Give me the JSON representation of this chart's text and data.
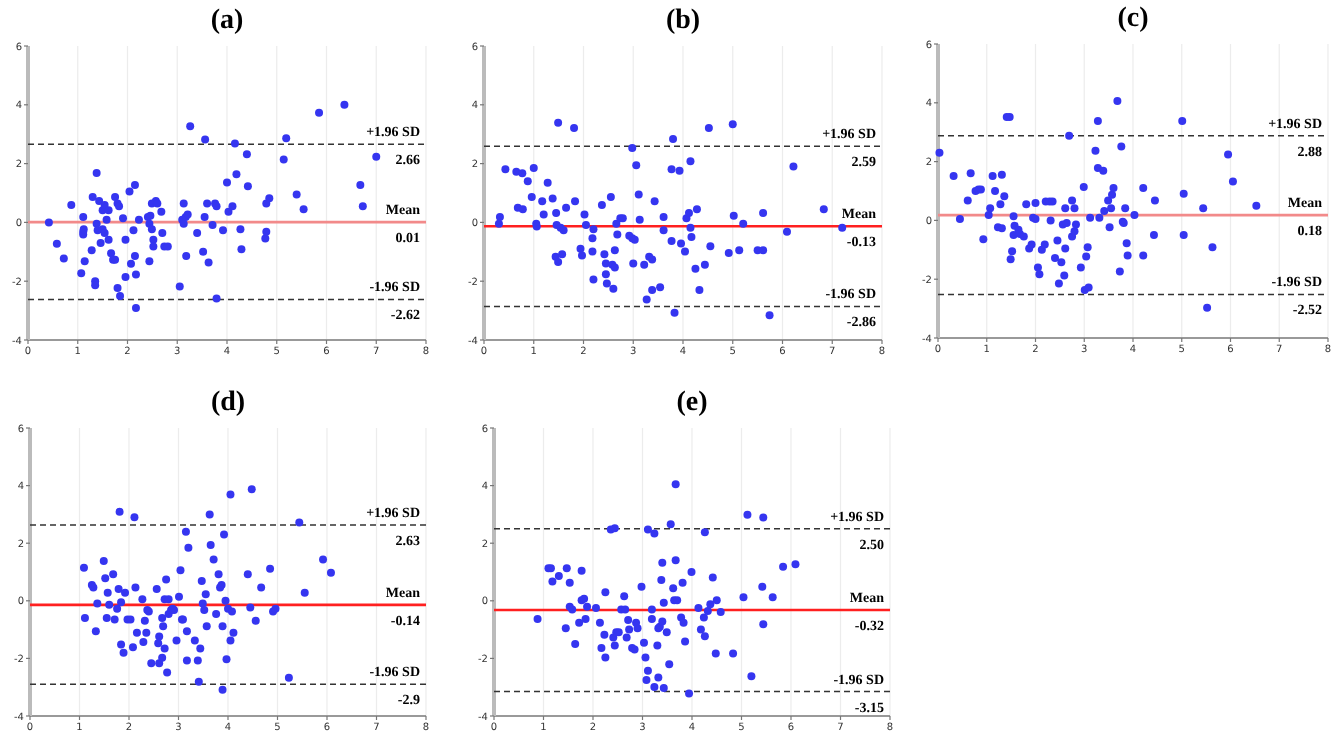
{
  "chart_data": [
    {
      "type": "scatter",
      "title": "(a)",
      "xlim": [
        0,
        8
      ],
      "xticks": [
        0,
        1,
        2,
        3,
        4,
        5,
        6,
        7,
        8
      ],
      "ylim": [
        -4,
        6
      ],
      "yticks": [
        -4,
        -2,
        0,
        2,
        4,
        6
      ],
      "grid": "x",
      "marker": "circle",
      "series": [
        {
          "color": "#3535f0",
          "x": [
            0.42,
            0.58,
            0.72,
            0.87,
            1.07,
            1.11,
            1.11,
            1.11,
            1.12,
            1.14,
            1.3,
            1.28,
            1.35,
            1.35,
            1.38,
            1.38,
            1.4,
            1.43,
            1.46,
            1.5,
            1.5,
            1.54,
            1.54,
            1.58,
            1.62,
            1.62,
            1.67,
            1.71,
            1.75,
            1.75,
            1.8,
            1.8,
            1.83,
            1.85,
            1.91,
            1.96,
            1.96,
            2.04,
            2.07,
            2.12,
            2.15,
            2.15,
            2.17,
            2.17,
            2.23,
            2.41,
            2.44,
            2.44,
            2.46,
            2.49,
            2.49,
            2.52,
            2.52,
            2.57,
            2.6,
            2.68,
            2.7,
            2.74,
            2.81,
            3.05,
            3.1,
            3.13,
            3.13,
            3.17,
            3.18,
            3.21,
            3.26,
            3.4,
            3.52,
            3.55,
            3.56,
            3.6,
            3.63,
            3.71,
            3.76,
            3.79,
            3.79,
            3.92,
            4.0,
            4.03,
            4.11,
            4.16,
            4.19,
            4.27,
            4.29,
            4.4,
            4.42,
            4.77,
            4.79,
            4.79,
            4.85,
            5.14,
            5.19,
            5.4,
            5.54,
            5.85,
            6.36,
            6.68,
            6.73,
            7.0
          ],
          "values": [
            0.0,
            -0.73,
            -1.23,
            0.59,
            -1.73,
            0.18,
            -0.32,
            -0.41,
            -0.23,
            -1.32,
            0.86,
            -0.95,
            -2.0,
            -2.14,
            1.68,
            -0.05,
            -0.27,
            0.73,
            -0.7,
            0.41,
            -0.23,
            0.59,
            -0.36,
            0.09,
            0.41,
            -0.59,
            -1.05,
            -1.27,
            0.86,
            -1.27,
            0.64,
            -2.23,
            0.55,
            -2.5,
            0.14,
            -0.59,
            -1.86,
            1.05,
            -1.41,
            -0.27,
            -1.14,
            1.27,
            -1.77,
            -2.91,
            0.09,
            0.18,
            -0.05,
            -1.32,
            0.23,
            0.64,
            -0.23,
            -0.59,
            -0.82,
            0.73,
            0.64,
            0.36,
            -0.36,
            -0.82,
            -0.82,
            -2.18,
            0.09,
            0.64,
            -0.05,
            0.18,
            -1.14,
            0.27,
            3.27,
            -0.36,
            -1.0,
            0.18,
            2.82,
            0.64,
            -1.36,
            -0.09,
            0.64,
            0.55,
            -2.59,
            -0.27,
            1.36,
            0.36,
            0.55,
            2.68,
            1.64,
            -0.23,
            -0.91,
            2.32,
            1.23,
            -0.55,
            -0.32,
            0.64,
            0.82,
            2.14,
            2.86,
            0.95,
            0.45,
            3.73,
            4.0,
            1.27,
            0.55,
            2.23
          ]
        }
      ],
      "ref_lines": [
        {
          "axis": "y",
          "value": 2.66,
          "label": "+1.96 SD",
          "color": "#333333",
          "line_style": "dashed"
        },
        {
          "axis": "y",
          "value": 0.01,
          "label": "Mean",
          "color": "#f28a8a",
          "line_style": "solid"
        },
        {
          "axis": "y",
          "value": -2.62,
          "label": "-1.96 SD",
          "color": "#333333",
          "line_style": "dashed"
        }
      ],
      "annotations": [
        {
          "text": "2.66",
          "y": 2.66
        },
        {
          "text": "0.01",
          "y": 0.01
        },
        {
          "text": "-2.62",
          "y": -2.62
        }
      ]
    },
    {
      "type": "scatter",
      "title": "(b)",
      "xlim": [
        0,
        8
      ],
      "xticks": [
        0,
        1,
        2,
        3,
        4,
        5,
        6,
        7,
        8
      ],
      "ylim": [
        -4,
        6
      ],
      "yticks": [
        -4,
        -2,
        0,
        2,
        4,
        6
      ],
      "grid": "x",
      "marker": "circle",
      "series": [
        {
          "color": "#3535f0",
          "x": [
            0.32,
            0.3,
            0.43,
            0.65,
            0.68,
            0.77,
            0.78,
            0.88,
            0.96,
            1.0,
            1.05,
            1.06,
            1.17,
            1.2,
            1.28,
            1.38,
            1.44,
            1.45,
            1.46,
            1.49,
            1.49,
            1.54,
            1.57,
            1.6,
            1.65,
            1.81,
            1.83,
            1.94,
            1.97,
            2.02,
            2.05,
            2.18,
            2.2,
            2.18,
            2.2,
            2.37,
            2.42,
            2.45,
            2.45,
            2.47,
            2.55,
            2.58,
            2.6,
            2.63,
            2.63,
            2.66,
            2.68,
            2.74,
            2.79,
            2.92,
            2.98,
            2.98,
            3.0,
            3.03,
            3.06,
            3.11,
            3.13,
            3.22,
            3.27,
            3.32,
            3.38,
            3.38,
            3.43,
            3.54,
            3.61,
            3.61,
            3.77,
            3.77,
            3.8,
            3.83,
            3.93,
            3.96,
            4.04,
            4.07,
            4.12,
            4.15,
            4.15,
            4.17,
            4.25,
            4.28,
            4.33,
            4.44,
            4.52,
            4.55,
            4.92,
            5.0,
            5.02,
            5.13,
            5.21,
            5.5,
            5.61,
            5.61,
            5.74,
            6.09,
            6.22,
            6.83,
            7.2
          ],
          "values": [
            0.18,
            -0.05,
            1.81,
            1.72,
            0.5,
            1.67,
            0.45,
            1.4,
            0.86,
            1.85,
            -0.05,
            -0.14,
            0.72,
            0.27,
            1.35,
            0.81,
            -1.17,
            0.32,
            -0.09,
            3.39,
            -1.35,
            -0.18,
            -1.08,
            -0.27,
            0.5,
            3.21,
            0.72,
            -0.9,
            -1.13,
            0.27,
            -0.09,
            -0.54,
            -0.23,
            -0.99,
            -1.94,
            0.59,
            -1.08,
            -1.4,
            -1.76,
            -2.08,
            0.86,
            -1.44,
            -2.26,
            -0.95,
            -1.53,
            -0.05,
            -0.41,
            0.14,
            0.14,
            -0.45,
            2.53,
            -0.54,
            -1.4,
            -0.59,
            1.94,
            0.95,
            0.09,
            -1.44,
            -2.62,
            -1.17,
            -2.3,
            -1.26,
            0.72,
            -2.21,
            0.18,
            -0.27,
            1.81,
            -0.63,
            2.84,
            -3.07,
            1.76,
            -0.72,
            -0.99,
            0.14,
            0.32,
            2.08,
            -0.18,
            -0.5,
            -1.58,
            0.45,
            -2.3,
            -1.44,
            3.21,
            -0.81,
            -1.04,
            3.34,
            0.23,
            -0.95,
            -0.05,
            -0.95,
            -0.95,
            0.32,
            -3.16,
            -0.32,
            1.9,
            0.45,
            -0.18
          ]
        }
      ],
      "ref_lines": [
        {
          "axis": "y",
          "value": 2.59,
          "label": "+1.96 SD",
          "color": "#333333",
          "line_style": "dashed"
        },
        {
          "axis": "y",
          "value": -0.13,
          "label": "Mean",
          "color": "#ff2020",
          "line_style": "solid"
        },
        {
          "axis": "y",
          "value": -2.86,
          "label": "-1.96 SD",
          "color": "#333333",
          "line_style": "dashed"
        }
      ],
      "annotations": [
        {
          "text": "2.59",
          "y": 2.59
        },
        {
          "text": "-0.13",
          "y": -0.13
        },
        {
          "text": "-2.86",
          "y": -2.86
        }
      ]
    },
    {
      "type": "scatter",
      "title": "(c)",
      "xlim": [
        0,
        8
      ],
      "xticks": [
        0,
        1,
        2,
        3,
        4,
        5,
        6,
        7,
        8
      ],
      "ylim": [
        -4,
        6
      ],
      "yticks": [
        -4,
        -2,
        0,
        2,
        4,
        6
      ],
      "grid": "x",
      "marker": "circle",
      "series": [
        {
          "color": "#3535f0",
          "x": [
            0.03,
            0.32,
            0.45,
            0.61,
            0.67,
            0.77,
            0.83,
            0.88,
            0.93,
            1.04,
            1.07,
            1.12,
            1.17,
            1.23,
            1.28,
            1.31,
            1.31,
            1.36,
            1.41,
            1.47,
            1.49,
            1.52,
            1.55,
            1.55,
            1.57,
            1.65,
            1.68,
            1.76,
            1.81,
            1.87,
            1.92,
            1.95,
            2.0,
            2.0,
            2.05,
            2.08,
            2.13,
            2.19,
            2.21,
            2.29,
            2.31,
            2.35,
            2.4,
            2.45,
            2.48,
            2.53,
            2.56,
            2.59,
            2.61,
            2.61,
            2.64,
            2.69,
            2.75,
            2.75,
            2.8,
            2.8,
            2.83,
            2.93,
            2.99,
            3.01,
            3.04,
            3.07,
            3.09,
            3.12,
            3.23,
            3.28,
            3.28,
            3.31,
            3.39,
            3.41,
            3.49,
            3.52,
            3.55,
            3.57,
            3.6,
            3.68,
            3.73,
            3.76,
            3.79,
            3.81,
            3.84,
            3.87,
            3.89,
            4.03,
            4.21,
            4.21,
            4.43,
            4.45,
            5.01,
            5.04,
            5.04,
            5.44,
            5.52,
            5.63,
            5.95,
            6.05,
            6.53
          ],
          "values": [
            2.3,
            1.51,
            0.05,
            0.68,
            1.6,
            1.0,
            1.05,
            1.05,
            -0.64,
            0.18,
            0.41,
            1.51,
            1.0,
            -0.23,
            0.55,
            -0.27,
            1.55,
            0.82,
            3.52,
            3.52,
            -1.32,
            -1.05,
            0.14,
            -0.5,
            -0.18,
            -0.32,
            -0.46,
            -0.55,
            0.55,
            -0.96,
            -0.82,
            0.09,
            0.59,
            0.05,
            -1.6,
            -1.83,
            -1.0,
            -0.82,
            0.64,
            0.64,
            0.0,
            0.64,
            -1.28,
            -0.68,
            -2.15,
            -1.42,
            -0.14,
            -1.87,
            -0.96,
            0.41,
            -0.09,
            2.88,
            0.68,
            -0.55,
            -0.37,
            0.41,
            -0.14,
            -1.6,
            1.14,
            -2.37,
            -1.23,
            -0.91,
            -2.28,
            0.09,
            2.37,
            1.78,
            3.38,
            0.09,
            1.69,
            0.32,
            0.68,
            -0.23,
            0.41,
            0.87,
            1.1,
            4.06,
            -1.74,
            2.51,
            -0.05,
            -0.09,
            0.41,
            -0.78,
            -1.19,
            0.18,
            1.1,
            -1.19,
            -0.5,
            0.68,
            3.38,
            0.91,
            -0.5,
            0.41,
            -2.97,
            -0.91,
            2.24,
            1.32,
            0.5
          ]
        }
      ],
      "ref_lines": [
        {
          "axis": "y",
          "value": 2.88,
          "label": "+1.96 SD",
          "color": "#333333",
          "line_style": "dashed"
        },
        {
          "axis": "y",
          "value": 0.18,
          "label": "Mean",
          "color": "#f28a8a",
          "line_style": "solid"
        },
        {
          "axis": "y",
          "value": -2.52,
          "label": "-1.96 SD",
          "color": "#333333",
          "line_style": "dashed"
        }
      ],
      "annotations": [
        {
          "text": "2.88",
          "y": 2.88
        },
        {
          "text": "0.18",
          "y": 0.18
        },
        {
          "text": "-2.52",
          "y": -2.52
        }
      ]
    },
    {
      "type": "scatter",
      "title": "(d)",
      "xlim": [
        0,
        8
      ],
      "xticks": [
        0,
        1,
        2,
        3,
        4,
        5,
        6,
        7,
        8
      ],
      "ylim": [
        -4,
        6
      ],
      "yticks": [
        -4,
        -2,
        0,
        2,
        4,
        6
      ],
      "grid": "x",
      "marker": "circle",
      "series": [
        {
          "color": "#3535f0",
          "x": [
            1.09,
            1.11,
            1.25,
            1.28,
            1.33,
            1.36,
            1.49,
            1.52,
            1.55,
            1.57,
            1.6,
            1.68,
            1.71,
            1.76,
            1.79,
            1.81,
            1.84,
            1.84,
            1.89,
            1.92,
            1.97,
            2.03,
            2.08,
            2.11,
            2.13,
            2.16,
            2.27,
            2.29,
            2.32,
            2.35,
            2.37,
            2.4,
            2.45,
            2.56,
            2.59,
            2.61,
            2.61,
            2.67,
            2.67,
            2.69,
            2.72,
            2.72,
            2.75,
            2.77,
            2.8,
            2.8,
            2.85,
            2.88,
            2.91,
            2.96,
            3.01,
            3.04,
            3.07,
            3.09,
            3.15,
            3.17,
            3.17,
            3.2,
            3.33,
            3.39,
            3.41,
            3.44,
            3.47,
            3.49,
            3.52,
            3.55,
            3.57,
            3.63,
            3.65,
            3.71,
            3.76,
            3.81,
            3.84,
            3.87,
            3.89,
            3.89,
            3.92,
            3.95,
            3.97,
            4.0,
            4.05,
            4.05,
            4.08,
            4.11,
            4.4,
            4.45,
            4.48,
            4.56,
            4.67,
            4.85,
            4.91,
            4.96,
            5.23,
            5.44,
            5.55,
            5.92,
            6.08
          ],
          "values": [
            1.15,
            -0.6,
            0.55,
            0.46,
            -1.06,
            -0.09,
            1.38,
            0.78,
            -0.6,
            0.28,
            -0.14,
            0.92,
            -0.65,
            -0.28,
            0.41,
            3.09,
            -0.05,
            -1.52,
            -1.8,
            0.28,
            -0.65,
            -0.65,
            -1.61,
            2.9,
            0.46,
            -1.11,
            0.05,
            -1.43,
            -0.69,
            -1.11,
            -0.32,
            -0.37,
            -2.17,
            0.41,
            -1.47,
            -2.17,
            -1.24,
            -1.98,
            -0.6,
            -0.88,
            0.05,
            -1.66,
            0.74,
            -2.49,
            0.05,
            -0.46,
            -0.32,
            -0.28,
            -0.32,
            -1.38,
            0.14,
            1.06,
            -0.65,
            -0.65,
            2.4,
            -1.06,
            -2.07,
            1.84,
            -1.38,
            -2.07,
            -2.81,
            -1.66,
            0.69,
            -0.09,
            -0.32,
            0.23,
            -0.88,
            3.0,
            1.94,
            1.43,
            -0.46,
            0.92,
            0.46,
            0.55,
            -0.88,
            -3.09,
            2.3,
            0.0,
            -2.03,
            -0.28,
            3.69,
            -1.38,
            -0.37,
            -1.11,
            0.92,
            -0.23,
            3.87,
            -0.69,
            0.46,
            1.11,
            -0.37,
            -0.28,
            -2.67,
            2.72,
            0.28,
            1.43,
            0.97
          ]
        }
      ],
      "ref_lines": [
        {
          "axis": "y",
          "value": 2.63,
          "label": "+1.96 SD",
          "color": "#333333",
          "line_style": "dashed"
        },
        {
          "axis": "y",
          "value": -0.14,
          "label": "Mean",
          "color": "#ff2020",
          "line_style": "solid"
        },
        {
          "axis": "y",
          "value": -2.9,
          "label": "-1.96 SD",
          "color": "#333333",
          "line_style": "dashed"
        }
      ],
      "annotations": [
        {
          "text": "2.63",
          "y": 2.63
        },
        {
          "text": "-0.14",
          "y": -0.14
        },
        {
          "text": "-2.9",
          "y": -2.9
        }
      ]
    },
    {
      "type": "scatter",
      "title": "(e)",
      "xlim": [
        0,
        8
      ],
      "xticks": [
        0,
        1,
        2,
        3,
        4,
        5,
        6,
        7,
        8
      ],
      "ylim": [
        -4,
        6
      ],
      "yticks": [
        -4,
        -2,
        0,
        2,
        4,
        6
      ],
      "grid": "x",
      "marker": "circle",
      "series": [
        {
          "color": "#3535f0",
          "x": [
            0.88,
            1.1,
            1.15,
            1.18,
            1.31,
            1.45,
            1.47,
            1.53,
            1.53,
            1.58,
            1.64,
            1.72,
            1.77,
            1.77,
            1.82,
            1.85,
            1.88,
            2.06,
            2.14,
            2.17,
            2.23,
            2.25,
            2.25,
            2.36,
            2.41,
            2.44,
            2.44,
            2.47,
            2.52,
            2.57,
            2.63,
            2.65,
            2.68,
            2.71,
            2.73,
            2.79,
            2.84,
            2.87,
            2.9,
            2.98,
            3.03,
            3.06,
            3.08,
            3.11,
            3.11,
            3.19,
            3.19,
            3.24,
            3.24,
            3.3,
            3.32,
            3.32,
            3.35,
            3.38,
            3.4,
            3.4,
            3.43,
            3.43,
            3.49,
            3.54,
            3.57,
            3.62,
            3.64,
            3.67,
            3.67,
            3.7,
            3.78,
            3.81,
            3.83,
            3.86,
            3.94,
            3.99,
            4.13,
            4.18,
            4.24,
            4.26,
            4.26,
            4.32,
            4.37,
            4.42,
            4.48,
            4.5,
            4.58,
            4.83,
            5.04,
            5.12,
            5.2,
            5.42,
            5.44,
            5.44,
            5.63,
            5.84,
            6.09
          ],
          "values": [
            -0.63,
            1.13,
            1.13,
            0.67,
            0.86,
            -0.95,
            1.13,
            0.63,
            -0.21,
            -0.3,
            -1.5,
            -0.76,
            1.04,
            0.02,
            0.07,
            -0.63,
            -0.21,
            -0.25,
            -0.76,
            -1.64,
            -1.18,
            -1.97,
            0.3,
            2.48,
            -1.27,
            2.52,
            -1.55,
            -1.09,
            -1.09,
            -0.3,
            0.16,
            -0.3,
            -1.27,
            -0.67,
            -1.0,
            -1.64,
            -1.69,
            -0.76,
            -0.95,
            0.49,
            -1.46,
            -1.97,
            -2.75,
            2.48,
            -2.43,
            -0.63,
            -0.3,
            2.34,
            -2.99,
            -1.55,
            -0.95,
            -2.66,
            -0.9,
            0.72,
            -0.72,
            1.32,
            -0.07,
            -3.03,
            -1.09,
            -2.2,
            2.66,
            0.44,
            0.02,
            1.41,
            4.05,
            0.02,
            -0.58,
            0.63,
            -0.76,
            -1.41,
            -3.22,
            1.0,
            -0.25,
            -1.0,
            -0.58,
            2.38,
            -1.23,
            -0.35,
            -0.12,
            0.81,
            -1.83,
            0.02,
            -0.39,
            -1.83,
            0.12,
            2.99,
            -2.62,
            0.49,
            2.89,
            -0.81,
            0.12,
            1.18,
            1.27
          ]
        }
      ],
      "ref_lines": [
        {
          "axis": "y",
          "value": 2.5,
          "label": "+1.96 SD",
          "color": "#333333",
          "line_style": "dashed"
        },
        {
          "axis": "y",
          "value": -0.32,
          "label": "Mean",
          "color": "#ff2020",
          "line_style": "solid"
        },
        {
          "axis": "y",
          "value": -3.15,
          "label": "-1.96 SD",
          "color": "#333333",
          "line_style": "dashed"
        }
      ],
      "annotations": [
        {
          "text": "2.50",
          "y": 2.5
        },
        {
          "text": "-0.32",
          "y": -0.32
        },
        {
          "text": "-3.15",
          "y": -3.15
        }
      ]
    }
  ]
}
